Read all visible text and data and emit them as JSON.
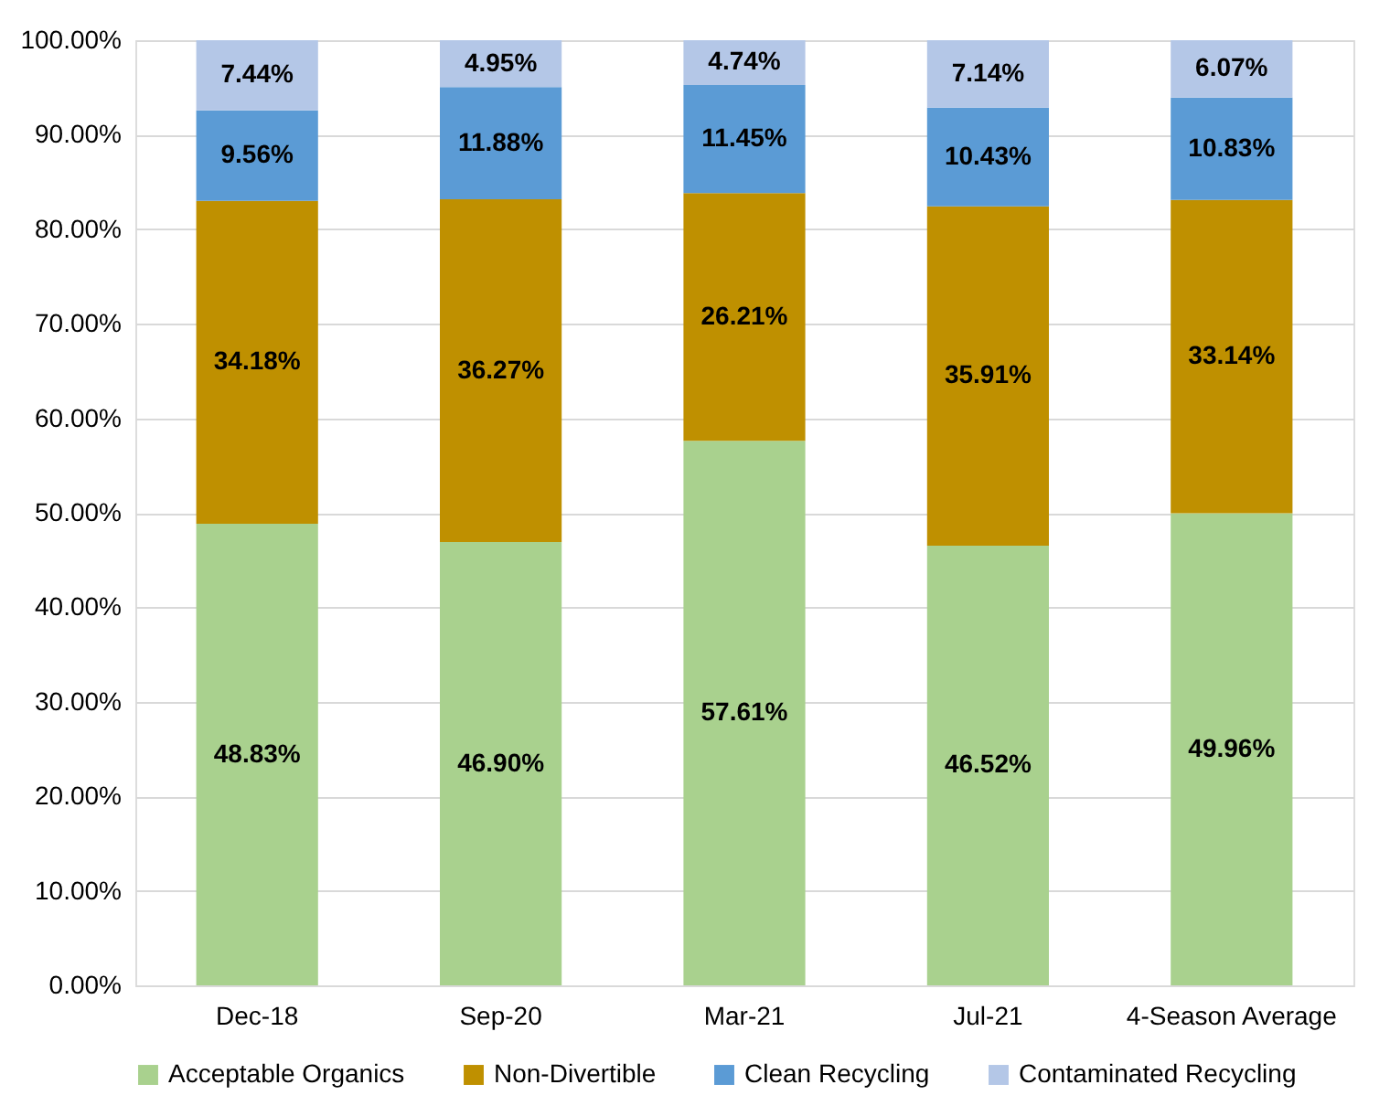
{
  "chart_data": {
    "type": "bar",
    "stacked": true,
    "categories": [
      "Dec-18",
      "Sep-20",
      "Mar-21",
      "Jul-21",
      "4-Season Average"
    ],
    "series": [
      {
        "name": "Acceptable Organics",
        "color": "#a9d18e",
        "values": [
          48.83,
          46.9,
          57.61,
          46.52,
          49.96
        ],
        "value_labels": [
          "48.83%",
          "46.90%",
          "57.61%",
          "46.52%",
          "49.96%"
        ]
      },
      {
        "name": "Non-Divertible",
        "color": "#bf9000",
        "values": [
          34.18,
          36.27,
          26.21,
          35.91,
          33.14
        ],
        "value_labels": [
          "34.18%",
          "36.27%",
          "26.21%",
          "35.91%",
          "33.14%"
        ]
      },
      {
        "name": "Clean Recycling",
        "color": "#5b9bd5",
        "values": [
          9.56,
          11.88,
          11.45,
          10.43,
          10.83
        ],
        "value_labels": [
          "9.56%",
          "11.88%",
          "11.45%",
          "10.43%",
          "10.83%"
        ]
      },
      {
        "name": "Contaminated Recycling",
        "color": "#b4c7e7",
        "values": [
          7.44,
          4.95,
          4.74,
          7.14,
          6.07
        ],
        "value_labels": [
          "7.44%",
          "4.95%",
          "4.74%",
          "7.14%",
          "6.07%"
        ]
      }
    ],
    "ylim": [
      0,
      100
    ],
    "yticks": [
      {
        "value": 0,
        "label": "0.00%"
      },
      {
        "value": 10,
        "label": "10.00%"
      },
      {
        "value": 20,
        "label": "20.00%"
      },
      {
        "value": 30,
        "label": "30.00%"
      },
      {
        "value": 40,
        "label": "40.00%"
      },
      {
        "value": 50,
        "label": "50.00%"
      },
      {
        "value": 60,
        "label": "60.00%"
      },
      {
        "value": 70,
        "label": "70.00%"
      },
      {
        "value": 80,
        "label": "80.00%"
      },
      {
        "value": 90,
        "label": "90.00%"
      },
      {
        "value": 100,
        "label": "100.00%"
      }
    ],
    "grid": "y",
    "legend": "bottom"
  }
}
